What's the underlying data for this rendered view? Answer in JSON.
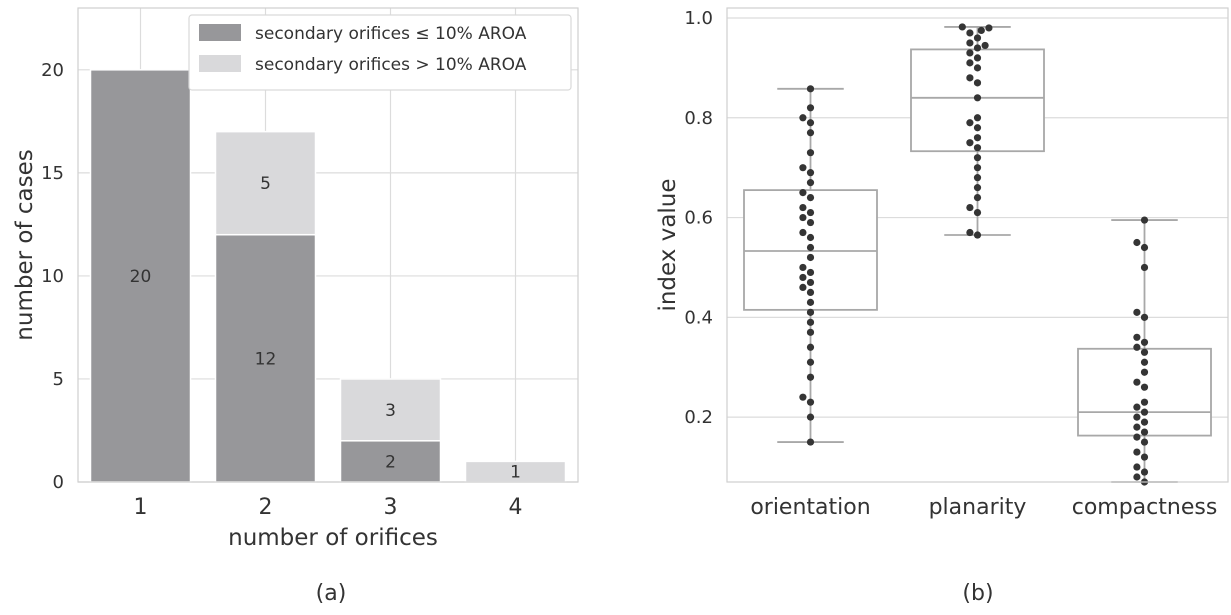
{
  "chart_data": [
    {
      "type": "bar",
      "stacked": true,
      "categories": [
        "1",
        "2",
        "3",
        "4"
      ],
      "series": [
        {
          "name": "secondary orifices ≤ 10% AROA",
          "values": [
            20,
            12,
            2,
            0
          ],
          "color": "#97979a"
        },
        {
          "name": "secondary orifices > 10% AROA",
          "values": [
            0,
            5,
            3,
            1
          ],
          "color": "#d9d9db"
        }
      ],
      "data_labels": [
        {
          "category": "1",
          "series": 0,
          "text": "20"
        },
        {
          "category": "2",
          "series": 0,
          "text": "12"
        },
        {
          "category": "2",
          "series": 1,
          "text": "5"
        },
        {
          "category": "3",
          "series": 0,
          "text": "2"
        },
        {
          "category": "3",
          "series": 1,
          "text": "3"
        },
        {
          "category": "4",
          "series": 1,
          "text": "1"
        }
      ],
      "xlabel": "number of orifices",
      "ylabel": "number of cases",
      "ylim": [
        0,
        23
      ],
      "yticks": [
        0,
        5,
        10,
        15,
        20
      ],
      "grid": true,
      "legend": "top-right",
      "panel_label": "(a)"
    },
    {
      "type": "box",
      "categories": [
        "orientation",
        "planarity",
        "compactness"
      ],
      "ylabel": "index value",
      "ylim": [
        0.07,
        1.02
      ],
      "yticks": [
        0.2,
        0.4,
        0.6,
        0.8,
        1.0
      ],
      "ytick_labels": [
        "0.2",
        "0.4",
        "0.6",
        "0.8",
        "1.0"
      ],
      "grid": true,
      "panel_label": "(b)",
      "boxes": [
        {
          "name": "orientation",
          "whisker_low": 0.15,
          "q1": 0.415,
          "median": 0.533,
          "q3": 0.655,
          "whisker_high": 0.858
        },
        {
          "name": "planarity",
          "whisker_low": 0.565,
          "q1": 0.733,
          "median": 0.84,
          "q3": 0.937,
          "whisker_high": 0.982
        },
        {
          "name": "compactness",
          "whisker_low": 0.07,
          "q1": 0.163,
          "median": 0.21,
          "q3": 0.337,
          "whisker_high": 0.595
        }
      ],
      "points": [
        [
          0.15,
          0.2,
          0.23,
          0.24,
          0.28,
          0.31,
          0.34,
          0.37,
          0.39,
          0.41,
          0.43,
          0.45,
          0.46,
          0.47,
          0.48,
          0.49,
          0.5,
          0.52,
          0.54,
          0.56,
          0.57,
          0.59,
          0.6,
          0.61,
          0.62,
          0.64,
          0.65,
          0.67,
          0.69,
          0.7,
          0.73,
          0.77,
          0.79,
          0.8,
          0.82,
          0.858
        ],
        [
          0.565,
          0.57,
          0.61,
          0.62,
          0.64,
          0.66,
          0.68,
          0.7,
          0.72,
          0.74,
          0.75,
          0.76,
          0.78,
          0.79,
          0.8,
          0.84,
          0.87,
          0.88,
          0.9,
          0.91,
          0.92,
          0.93,
          0.94,
          0.945,
          0.95,
          0.96,
          0.97,
          0.975,
          0.98,
          0.982
        ],
        [
          0.07,
          0.08,
          0.09,
          0.1,
          0.12,
          0.13,
          0.15,
          0.16,
          0.17,
          0.18,
          0.19,
          0.2,
          0.21,
          0.22,
          0.23,
          0.26,
          0.27,
          0.29,
          0.31,
          0.33,
          0.34,
          0.35,
          0.36,
          0.4,
          0.41,
          0.5,
          0.54,
          0.55,
          0.595
        ]
      ]
    }
  ]
}
